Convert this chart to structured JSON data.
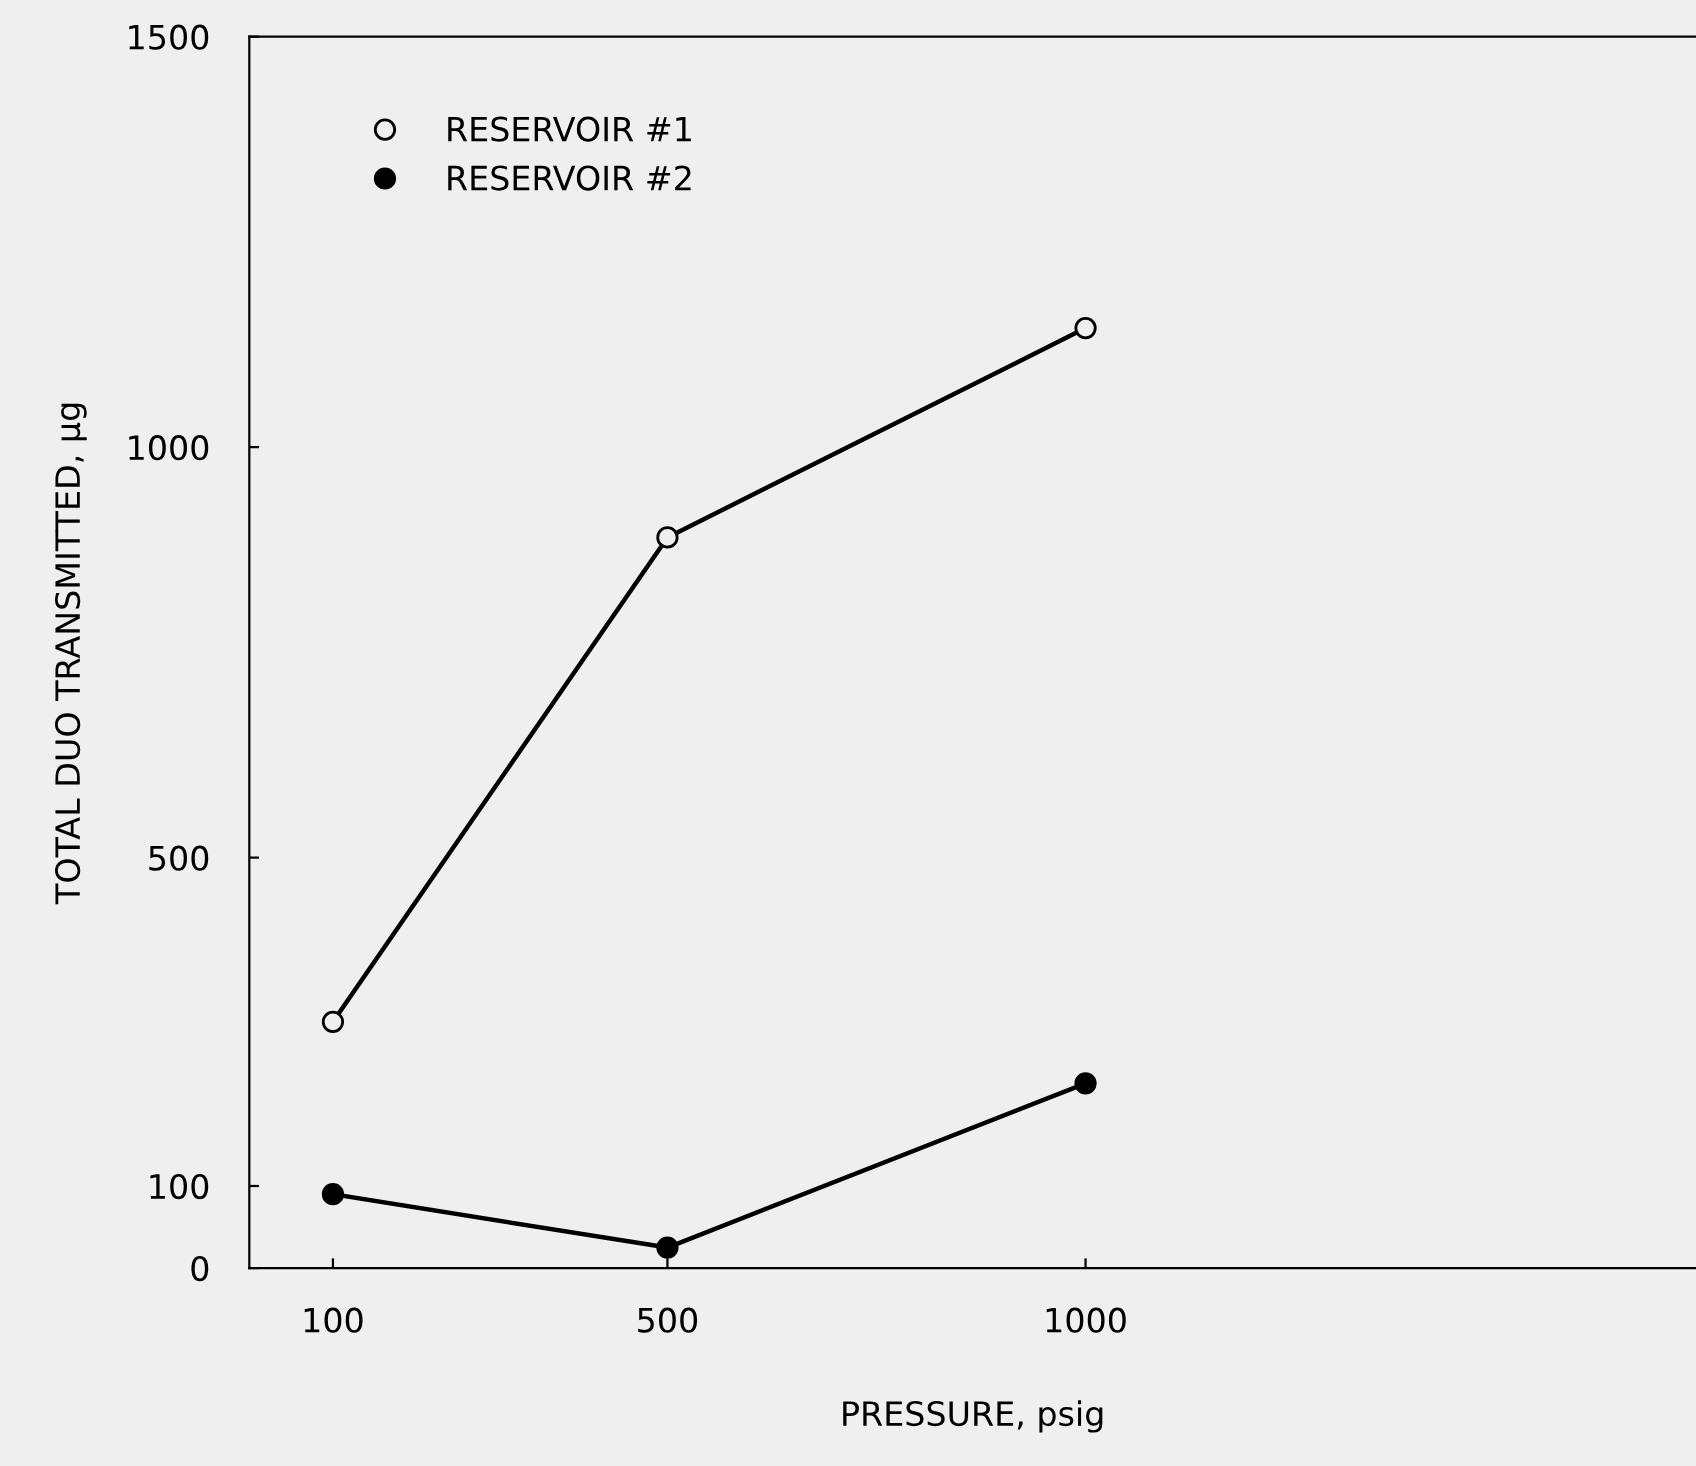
{
  "chart_data": {
    "type": "line",
    "xlabel": "PRESSURE, psig",
    "ylabel": "TOTAL DUO TRANSMITTED, µg",
    "x": [
      100,
      500,
      1000
    ],
    "xlim": [
      0,
      1730
    ],
    "xticks": [
      100,
      500,
      1000
    ],
    "ylim": [
      0,
      1500
    ],
    "yticks": [
      0,
      100,
      500,
      1000,
      1500
    ],
    "series": [
      {
        "name": "RESERVOIR #1",
        "color": "#000000",
        "values": [
          300,
          890,
          1145
        ]
      },
      {
        "name": "RESERVOIR #2",
        "color": "#000000",
        "values": [
          90,
          25,
          225
        ]
      }
    ],
    "marker": "circle",
    "line_style": "solid",
    "grid": false,
    "legend": "top left"
  }
}
